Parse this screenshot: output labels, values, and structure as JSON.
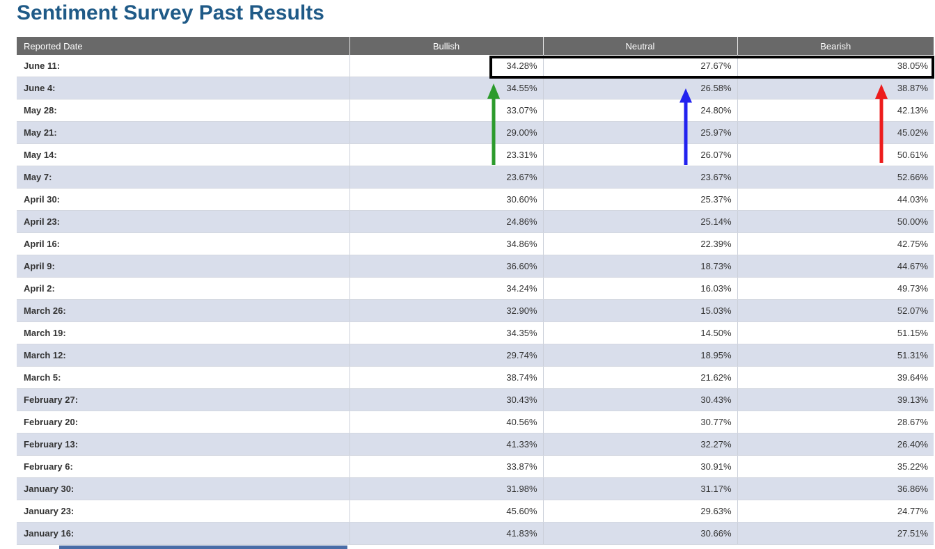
{
  "page": {
    "title": "Sentiment Survey Past Results"
  },
  "table": {
    "columns": [
      "Reported Date",
      "Bullish",
      "Neutral",
      "Bearish"
    ],
    "rows": [
      {
        "date": "June 11:",
        "bullish": "34.28%",
        "neutral": "27.67%",
        "bearish": "38.05%",
        "highlighted": true
      },
      {
        "date": "June 4:",
        "bullish": "34.55%",
        "neutral": "26.58%",
        "bearish": "38.87%"
      },
      {
        "date": "May 28:",
        "bullish": "33.07%",
        "neutral": "24.80%",
        "bearish": "42.13%"
      },
      {
        "date": "May 21:",
        "bullish": "29.00%",
        "neutral": "25.97%",
        "bearish": "45.02%"
      },
      {
        "date": "May 14:",
        "bullish": "23.31%",
        "neutral": "26.07%",
        "bearish": "50.61%"
      },
      {
        "date": "May 7:",
        "bullish": "23.67%",
        "neutral": "23.67%",
        "bearish": "52.66%"
      },
      {
        "date": "April 30:",
        "bullish": "30.60%",
        "neutral": "25.37%",
        "bearish": "44.03%"
      },
      {
        "date": "April 23:",
        "bullish": "24.86%",
        "neutral": "25.14%",
        "bearish": "50.00%"
      },
      {
        "date": "April 16:",
        "bullish": "34.86%",
        "neutral": "22.39%",
        "bearish": "42.75%"
      },
      {
        "date": "April 9:",
        "bullish": "36.60%",
        "neutral": "18.73%",
        "bearish": "44.67%"
      },
      {
        "date": "April 2:",
        "bullish": "34.24%",
        "neutral": "16.03%",
        "bearish": "49.73%"
      },
      {
        "date": "March 26:",
        "bullish": "32.90%",
        "neutral": "15.03%",
        "bearish": "52.07%"
      },
      {
        "date": "March 19:",
        "bullish": "34.35%",
        "neutral": "14.50%",
        "bearish": "51.15%"
      },
      {
        "date": "March 12:",
        "bullish": "29.74%",
        "neutral": "18.95%",
        "bearish": "51.31%"
      },
      {
        "date": "March 5:",
        "bullish": "38.74%",
        "neutral": "21.62%",
        "bearish": "39.64%"
      },
      {
        "date": "February 27:",
        "bullish": "30.43%",
        "neutral": "30.43%",
        "bearish": "39.13%"
      },
      {
        "date": "February 20:",
        "bullish": "40.56%",
        "neutral": "30.77%",
        "bearish": "28.67%"
      },
      {
        "date": "February 13:",
        "bullish": "41.33%",
        "neutral": "32.27%",
        "bearish": "26.40%"
      },
      {
        "date": "February 6:",
        "bullish": "33.87%",
        "neutral": "30.91%",
        "bearish": "35.22%"
      },
      {
        "date": "January 30:",
        "bullish": "31.98%",
        "neutral": "31.17%",
        "bearish": "36.86%"
      },
      {
        "date": "January 23:",
        "bullish": "45.60%",
        "neutral": "29.63%",
        "bearish": "24.77%"
      },
      {
        "date": "January 16:",
        "bullish": "41.83%",
        "neutral": "30.66%",
        "bearish": "27.51%"
      }
    ]
  },
  "annotations": {
    "highlight_box_row": "June 11:",
    "arrows": [
      {
        "name": "bullish-up-arrow",
        "column": "Bullish",
        "color": "#2c9b2c"
      },
      {
        "name": "neutral-up-arrow",
        "column": "Neutral",
        "color": "#2222ef"
      },
      {
        "name": "bearish-up-arrow",
        "column": "Bearish",
        "color": "#ed1c1c"
      }
    ]
  },
  "colors": {
    "title": "#1f5a87",
    "header_bg": "#696969",
    "stripe": "#d9deeb",
    "text": "#333333",
    "arrow_green": "#2c9b2c",
    "arrow_blue": "#2222ef",
    "arrow_red": "#ed1c1c",
    "highlight_border": "#000000",
    "bottom_bar": "#4a6da7"
  }
}
